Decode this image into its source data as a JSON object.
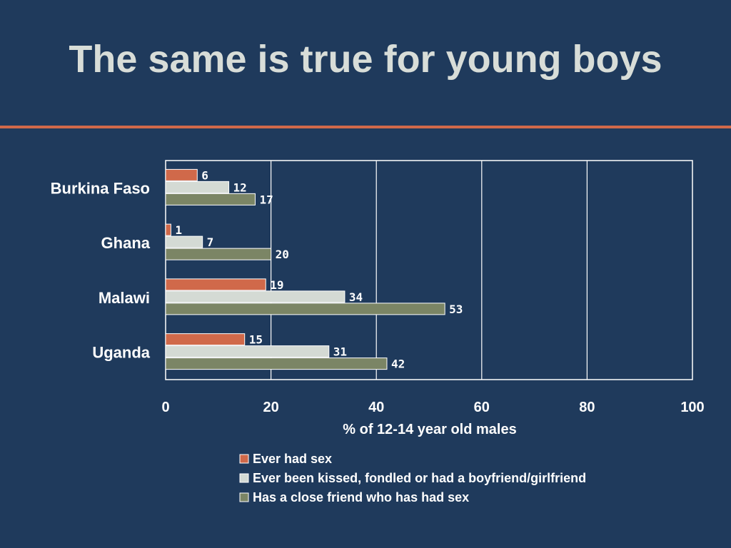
{
  "slide": {
    "title": "The same is true for young boys",
    "title_rule_color": "#d0694a",
    "background_color": "#1f3a5c"
  },
  "chart_data": {
    "type": "bar",
    "orientation": "horizontal",
    "categories": [
      "Burkina Faso",
      "Ghana",
      "Malawi",
      "Uganda"
    ],
    "series": [
      {
        "name": "Ever had sex",
        "color": "#d0694a",
        "values": [
          6,
          1,
          19,
          15
        ]
      },
      {
        "name": "Ever been kissed, fondled or had a boyfriend/girlfriend",
        "color": "#d4dad4",
        "values": [
          12,
          7,
          34,
          31
        ]
      },
      {
        "name": "Has a close friend who has had sex",
        "color": "#7b8565",
        "values": [
          17,
          20,
          53,
          42
        ]
      }
    ],
    "xlabel": "% of 12-14 year old males",
    "xlim": [
      0,
      100
    ],
    "xticks": [
      0,
      20,
      40,
      60,
      80,
      100
    ],
    "grid": true,
    "data_labels": true,
    "legend_position": "bottom"
  }
}
